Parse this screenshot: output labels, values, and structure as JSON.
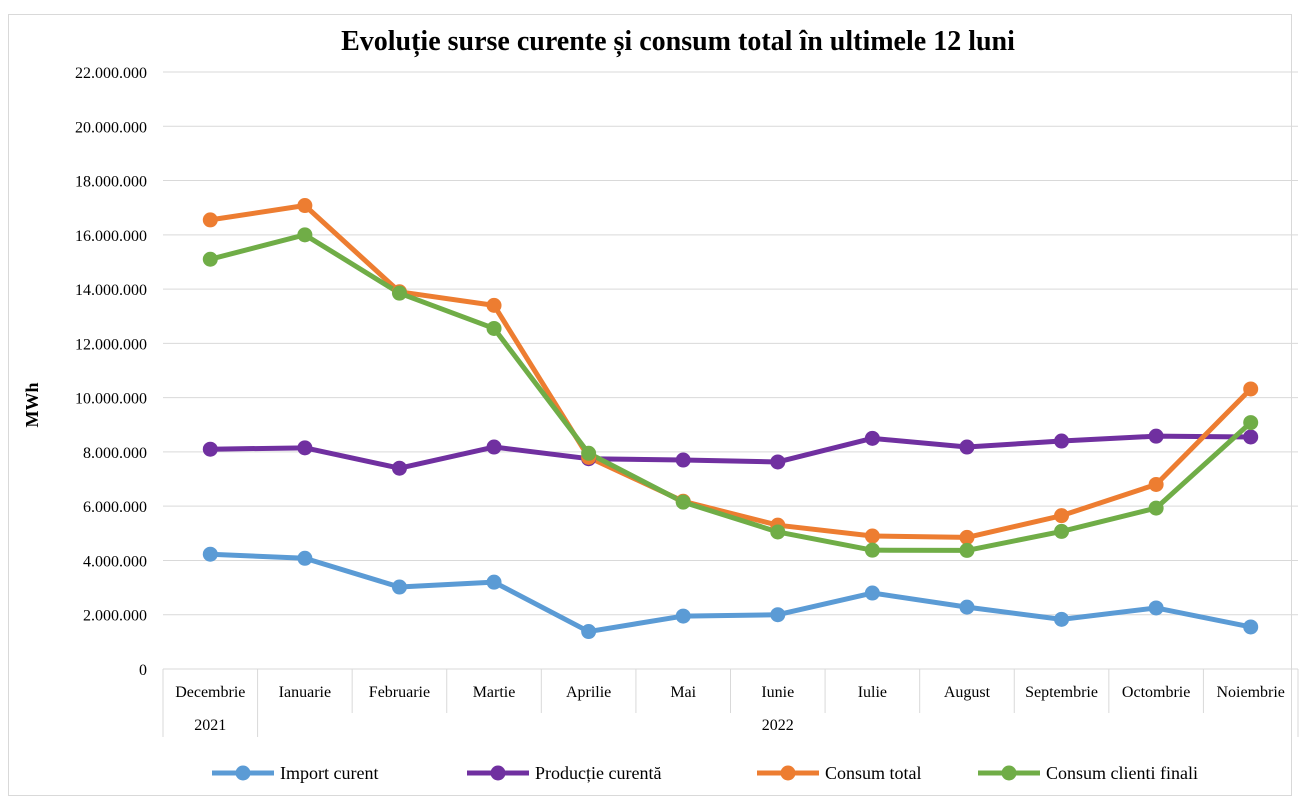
{
  "chart_data": {
    "type": "line",
    "title": "Evoluție surse curente și consum total în ultimele 12 luni",
    "ylabel": "MWh",
    "xlabel": "",
    "ylim": [
      0,
      22000000
    ],
    "ytick_step": 2000000,
    "ytick_labels": [
      "0",
      "2.000.000",
      "4.000.000",
      "6.000.000",
      "8.000.000",
      "10.000.000",
      "12.000.000",
      "14.000.000",
      "16.000.000",
      "18.000.000",
      "20.000.000",
      "22.000.000"
    ],
    "categories": [
      "Decembrie",
      "Ianuarie",
      "Februarie",
      "Martie",
      "Aprilie",
      "Mai",
      "Iunie",
      "Iulie",
      "August",
      "Septembrie",
      "Octombrie",
      "Noiembrie"
    ],
    "year_groups": [
      {
        "label": "2021",
        "span": 1
      },
      {
        "label": "2022",
        "span": 11
      }
    ],
    "grid": true,
    "legend_position": "bottom",
    "series": [
      {
        "name": "Import curent",
        "color": "#5b9bd5",
        "values": [
          4230000,
          4080000,
          3020000,
          3200000,
          1380000,
          1950000,
          2000000,
          2800000,
          2280000,
          1830000,
          2250000,
          1550000
        ]
      },
      {
        "name": "Producție curentă",
        "color": "#7030a0",
        "values": [
          8100000,
          8150000,
          7400000,
          8180000,
          7750000,
          7700000,
          7630000,
          8500000,
          8180000,
          8400000,
          8580000,
          8550000
        ]
      },
      {
        "name": "Consum total",
        "color": "#ed7d31",
        "values": [
          16550000,
          17080000,
          13900000,
          13400000,
          7800000,
          6180000,
          5300000,
          4900000,
          4850000,
          5650000,
          6800000,
          10320000
        ]
      },
      {
        "name": "Consum clienti finali",
        "color": "#70ad47",
        "values": [
          15100000,
          16000000,
          13850000,
          12550000,
          7950000,
          6150000,
          5050000,
          4380000,
          4370000,
          5070000,
          5930000,
          9080000
        ]
      }
    ]
  }
}
